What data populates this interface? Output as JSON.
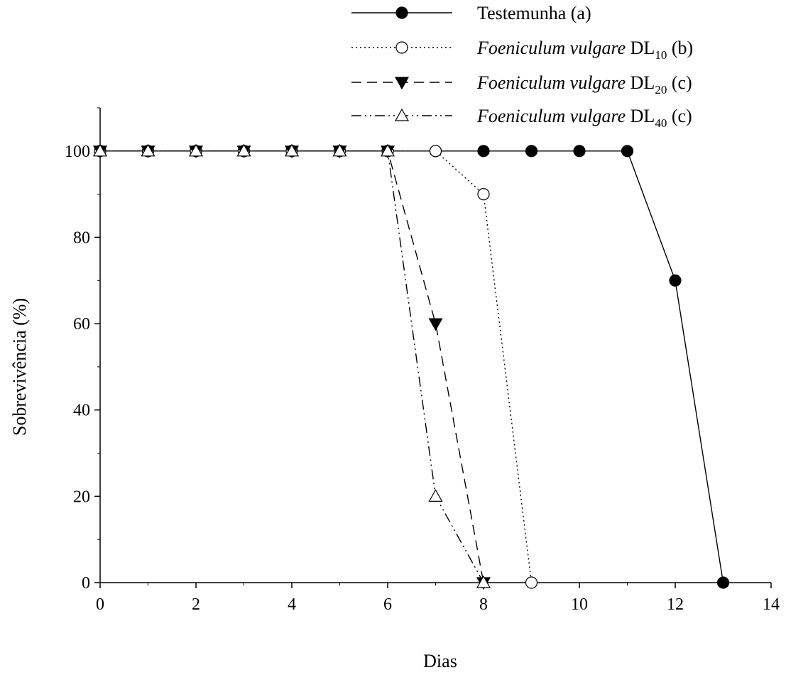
{
  "chart_data": {
    "type": "line",
    "title": "",
    "xlabel": "Dias",
    "ylabel": "Sobrevivência (%)",
    "xlim": [
      0,
      14
    ],
    "ylim": [
      0,
      110
    ],
    "xticks": [
      "0",
      "2",
      "4",
      "6",
      "8",
      "10",
      "12",
      "14"
    ],
    "yticks": [
      "0",
      "20",
      "40",
      "60",
      "80",
      "100"
    ],
    "grid": false,
    "legend_position": "top",
    "series": [
      {
        "legend_main": "Testemunha (a)",
        "legend_italic": "",
        "legend_prefix": "",
        "legend_sub": "",
        "legend_suffix": "",
        "line": "solid",
        "marker": "circle-filled",
        "x": [
          0,
          1,
          2,
          3,
          4,
          5,
          6,
          7,
          8,
          9,
          10,
          11,
          12,
          13
        ],
        "y": [
          100,
          100,
          100,
          100,
          100,
          100,
          100,
          100,
          100,
          100,
          100,
          100,
          70,
          0
        ]
      },
      {
        "legend_main": "",
        "legend_italic": "Foeniculum vulgare",
        "legend_prefix": " DL",
        "legend_sub": "10",
        "legend_suffix": " (b)",
        "line": "dotted",
        "marker": "circle-open",
        "x": [
          0,
          1,
          2,
          3,
          4,
          5,
          6,
          7,
          8,
          9
        ],
        "y": [
          100,
          100,
          100,
          100,
          100,
          100,
          100,
          100,
          90,
          0
        ]
      },
      {
        "legend_main": "",
        "legend_italic": "Foeniculum vulgare",
        "legend_prefix": " DL",
        "legend_sub": "20",
        "legend_suffix": " (c)",
        "line": "dashed",
        "marker": "triangle-down-filled",
        "x": [
          0,
          1,
          2,
          3,
          4,
          5,
          6,
          7,
          8
        ],
        "y": [
          100,
          100,
          100,
          100,
          100,
          100,
          100,
          60,
          0
        ]
      },
      {
        "legend_main": "",
        "legend_italic": "Foeniculum vulgare",
        "legend_prefix": " DL",
        "legend_sub": "40",
        "legend_suffix": " (c)",
        "line": "dash-dot-dot",
        "marker": "triangle-up-open",
        "x": [
          0,
          1,
          2,
          3,
          4,
          5,
          6,
          7,
          8
        ],
        "y": [
          100,
          100,
          100,
          100,
          100,
          100,
          100,
          20,
          0
        ]
      }
    ]
  }
}
